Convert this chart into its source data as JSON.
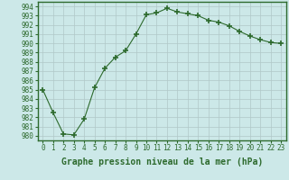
{
  "x": [
    0,
    1,
    2,
    3,
    4,
    5,
    6,
    7,
    8,
    9,
    10,
    11,
    12,
    13,
    14,
    15,
    16,
    17,
    18,
    19,
    20,
    21,
    22,
    23
  ],
  "y": [
    985,
    982.5,
    980.2,
    980.1,
    981.8,
    985.2,
    987.3,
    988.5,
    989.2,
    991.0,
    993.1,
    993.3,
    993.8,
    993.4,
    993.2,
    993.0,
    992.5,
    992.3,
    991.9,
    991.3,
    990.8,
    990.4,
    990.1,
    990.0
  ],
  "line_color": "#2d6a2d",
  "marker": "+",
  "marker_size": 4,
  "bg_color": "#cce8e8",
  "grid_color": "#b0c8c8",
  "xlabel": "Graphe pression niveau de la mer (hPa)",
  "ylim": [
    979.5,
    994.5
  ],
  "xlim": [
    -0.5,
    23.5
  ],
  "yticks": [
    980,
    981,
    982,
    983,
    984,
    985,
    986,
    987,
    988,
    989,
    990,
    991,
    992,
    993,
    994
  ],
  "xticks": [
    0,
    1,
    2,
    3,
    4,
    5,
    6,
    7,
    8,
    9,
    10,
    11,
    12,
    13,
    14,
    15,
    16,
    17,
    18,
    19,
    20,
    21,
    22,
    23
  ],
  "tick_fontsize": 5.5,
  "xlabel_fontsize": 7.0
}
